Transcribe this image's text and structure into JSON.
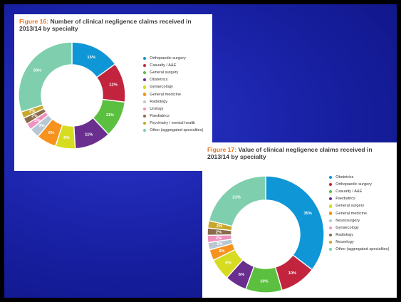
{
  "chart_data": [
    {
      "type": "pie",
      "title_num": "Figure 16:",
      "title_rest": " Number of clinical negligence claims received in 2013/14 by specialty",
      "slices": [
        {
          "name": "Orthopaedic surgery",
          "value": 15,
          "label": "15%",
          "color": "#0e96d6"
        },
        {
          "name": "Casualty / A&E",
          "value": 12,
          "label": "12%",
          "color": "#c2243e"
        },
        {
          "name": "General surgery",
          "value": 11,
          "label": "11%",
          "color": "#5bbf3f"
        },
        {
          "name": "Obstetrics",
          "value": 11,
          "label": "11%",
          "color": "#6a2e8e"
        },
        {
          "name": "Gynaecology",
          "value": 6,
          "label": "6%",
          "color": "#d7dc21"
        },
        {
          "name": "General medicine",
          "value": 6,
          "label": "6%",
          "color": "#f6921e"
        },
        {
          "name": "Radiology",
          "value": 3,
          "label": "3%",
          "color": "#b8c7d3"
        },
        {
          "name": "Urology",
          "value": 2,
          "label": "2%",
          "color": "#ee92be"
        },
        {
          "name": "Paediatrics",
          "value": 2,
          "label": "2%",
          "color": "#8a6b4a"
        },
        {
          "name": "Psychiatry / mental health",
          "value": 2,
          "label": "2%",
          "color": "#c8a82a"
        },
        {
          "name": "Other (aggregated specialties)",
          "value": 30,
          "label": "30%",
          "color": "#7fcfae"
        }
      ]
    },
    {
      "type": "pie",
      "title_num": "Figure 17:",
      "title_rest": " Value of clinical negligence claims received in 2013/14 by specialty",
      "slices": [
        {
          "name": "Obstetrics",
          "value": 35,
          "label": "35%",
          "color": "#0e96d6"
        },
        {
          "name": "Orthopaedic surgery",
          "value": 10,
          "label": "10%",
          "color": "#c2243e"
        },
        {
          "name": "Casualty / A&E",
          "value": 10,
          "label": "10%",
          "color": "#5bbf3f"
        },
        {
          "name": "Paediatrics",
          "value": 6,
          "label": "6%",
          "color": "#6a2e8e"
        },
        {
          "name": "General surgery",
          "value": 6,
          "label": "6%",
          "color": "#d7dc21"
        },
        {
          "name": "General medicine",
          "value": 3,
          "label": "3%",
          "color": "#f6921e"
        },
        {
          "name": "Neurosurgery",
          "value": 2,
          "label": "2%",
          "color": "#b8c7d3"
        },
        {
          "name": "Gynaecology",
          "value": 2,
          "label": "2%",
          "color": "#ee92be"
        },
        {
          "name": "Radiology",
          "value": 2,
          "label": "2%",
          "color": "#8a6b4a"
        },
        {
          "name": "Neurology",
          "value": 2,
          "label": "2%",
          "color": "#c8a82a"
        },
        {
          "name": "Other (aggregated specialties)",
          "value": 21,
          "label": "21%",
          "color": "#7fcfae"
        }
      ]
    }
  ]
}
